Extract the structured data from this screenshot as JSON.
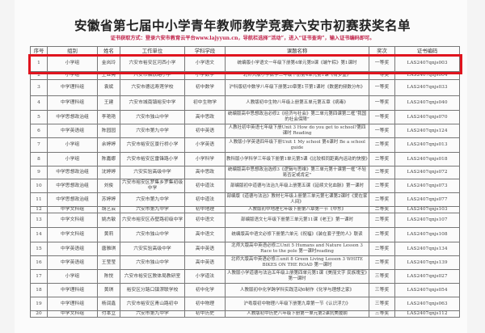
{
  "title": "安徽省第七届中小学青年教师教学竞赛六安市初赛获奖名单",
  "notice": "证书获取方式：登录六安市教育云平台www.lajyyun.cn，导航栏选择“活动”，进入“证书查询”，输入证书编码即可。",
  "headers": [
    "序号",
    "组别",
    "姓名",
    "工作单位",
    "学科学段",
    "课题名称",
    "奖次",
    "证书编码"
  ],
  "highlight_color": "#e0141e",
  "rows": [
    [
      "1",
      "小学组",
      "金岚玲",
      "六安市裕安区河西小学",
      "小学语文",
      "统编版小学语文一年级下册第4单元第9课《端午粽》第1课时",
      "一等奖",
      "LAS2407qnjs003"
    ],
    [
      "2",
      "小学组",
      "王亚亮",
      "六安市解放路小学",
      "小学数学",
      "北师大版小学数学三年级下册第4单元第1课《有多重》",
      "一等奖",
      "LAS2407qnjs004"
    ],
    [
      "3",
      "中学理科组",
      "袁斌",
      "六安市德远寿莲学校",
      "初中数学",
      "沪科版初中数学八年级下册第20章第1节第1课时《数据的频数分布》",
      "一等奖",
      "LAS2407qnjs033"
    ],
    [
      "4",
      "中学理科组",
      "王建",
      "六安市城南镇裕安中学",
      "初中生物学",
      "人教版初中生物八年级上册第五单元第五章《病毒》",
      "一等奖",
      "LAS2407qnjs040"
    ],
    [
      "5",
      "中学思想政治组",
      "李艳艳",
      "六安市独山中学",
      "高中思政",
      "统编版高中思想政治必修2《经济与社会》第二单元第四课第二框“我国的社会保障”",
      "一等奖",
      "LAS2407qnjs070"
    ],
    [
      "6",
      "中学英语组",
      "陈园园",
      "六安市第九中学",
      "初中英语",
      "人教社初中英语七年级下册Unit 3 How do you get to school?第四课时 Reading",
      "一等奖",
      "LAS2407qnjs124"
    ],
    [
      "7",
      "小学组",
      "余婷婷",
      "六安市裕安区景行桥小学",
      "小学英语",
      "人教版小学英语四年级下册Unit 1 My school 第4课时 Be a school guide",
      "二等奖",
      "LAS2407qnjs013"
    ],
    [
      "8",
      "小学组",
      "陈嘉娜",
      "六安市裕安区雷锋路小学",
      "小学科学",
      "教科版小学科学三年级下册第1单元第5课《比较相同距离内运动的快慢》",
      "二等奖",
      "LAS2407qnjs018"
    ],
    [
      "9",
      "中学思想政治组",
      "沈婷婷",
      "六安实验高级中学",
      "高中思政",
      "统编版高中思想政治选修3《逻辑与思维》第三单元第十课第一框“不轻易否定或肯定”",
      "二等奖",
      "LAS2407qnjs072"
    ],
    [
      "10",
      "中学思想政治组",
      "刘俊",
      "六安市裕安区罗集乡罗集初级中学",
      "初中道法",
      "部编版初中道德与法治九年级上册第五课《延续文化血脉》第一课时",
      "二等奖",
      "LAS2407qnjs073"
    ],
    [
      "11",
      "中学思想政治组",
      "苏婷婷",
      "六安市第九中学",
      "初中道法",
      "部编版《道德与法治》教材七年级上册第三单元第七课第2课时《爱在家人间》",
      "二等奖",
      "LAS2407qnjs077"
    ],
    [
      "12",
      "中学文科组",
      "胡艺云",
      "六安市第九中学",
      "初中地理",
      "人教版初中地理七年级下册第八章第一节《中东》",
      "二等奖",
      "LAS2407qnjs103"
    ],
    [
      "13",
      "中学文科组",
      "姚杰敏",
      "六安市裕安区赤壁路初级中学",
      "初中语文",
      "部编版语文七年级下册第三单元第11课《老王》第一课时",
      "二等奖",
      "LAS2407qnjs107"
    ],
    [
      "14",
      "中学文科组",
      "黄莉",
      "六安市独山中学",
      "高中语文",
      "统编版高中语文必修下册第六单元《祝福》《装在套子里的人》联读",
      "二等奖",
      "LAS2407qnjs108"
    ],
    [
      "15",
      "中学英语组",
      "唐雅琪",
      "六安实验高级中学",
      "高中英语",
      "北师大版高中英语必修二Unit 5 Humans and Nature Lesson 3 Race to the pole 第一课时reading",
      "二等奖",
      "LAS2407qnjs134"
    ],
    [
      "16",
      "中学英语组",
      "王莹莹",
      "六安市独山中学",
      "高中英语",
      "北师大版高中英语必修三unit 8 Green Living Lesson 3 WHITE BIKES ON THE ROAD 第一课时",
      "二等奖",
      "LAS2407qnjs139"
    ],
    [
      "17",
      "小学组",
      "陈悦",
      "六安市裕安区教体局教研室",
      "小学道法",
      "人教版小学道德与法治五年级上册第四单元第1课《美丽文字 民族瑰宝》第一课时",
      "三等奖",
      "LAS2407qnjs027"
    ],
    [
      "18",
      "中学理科组",
      "黄琪",
      "裕安区分路口镇淠联学校",
      "初中化学",
      "人教版初中化学跨学科实践活动6制作《化学与理想之家》",
      "三等奖",
      "LAS2407qnjs054"
    ],
    [
      "19",
      "中学理科组",
      "杨润鑫",
      "六安市裕安区青山路初中",
      "初中物理",
      "沪粤版初中物理八年级下册第九章第一节《认识浮力》",
      "三等奖",
      "LAS2407qnjs063"
    ],
    [
      "20",
      "中学文科组",
      "付本立",
      "六安市第九中学",
      "初中历史",
      "人教版初中历史八年级下册第一单元第2课抗美援朝",
      "三等奖",
      "LAS2407qnjs112"
    ]
  ]
}
